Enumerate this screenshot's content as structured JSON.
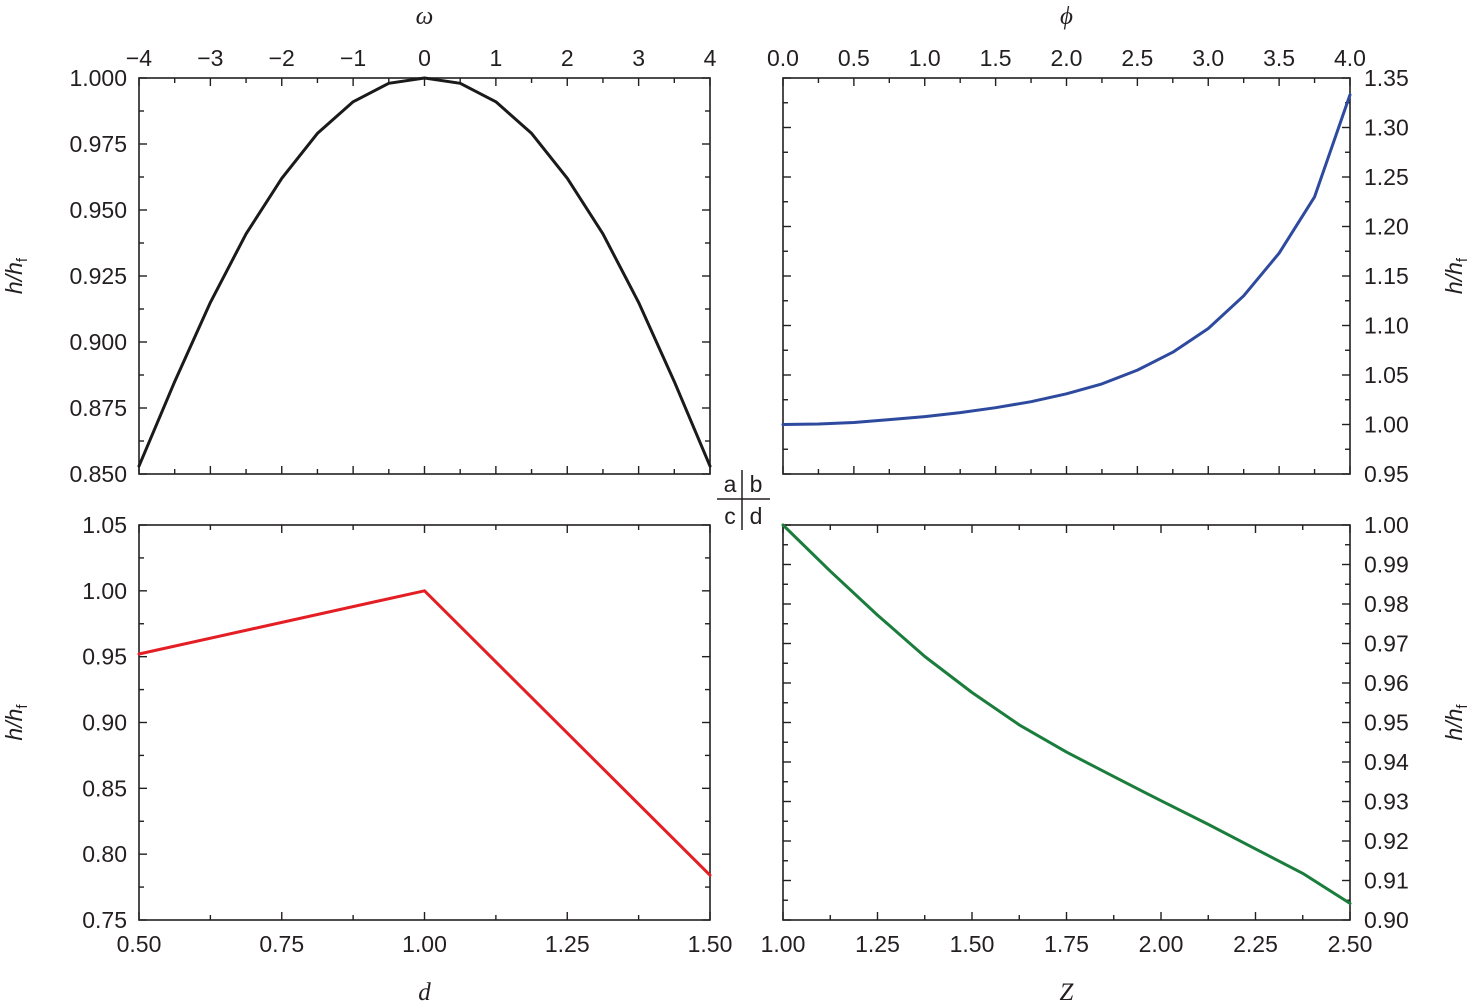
{
  "key": {
    "a": "a",
    "b": "b",
    "c": "c",
    "d": "d"
  },
  "chart_data": [
    {
      "panel": "a",
      "type": "line",
      "xlabel": "ω",
      "xaxis_position": "top",
      "ylabel": "h/h",
      "ylabel_sub": "f",
      "yaxis_position": "left",
      "xlim": [
        -4,
        4
      ],
      "ylim": [
        0.85,
        1.0
      ],
      "xticks": [
        -4,
        -3,
        -2,
        -1,
        0,
        1,
        2,
        3,
        4
      ],
      "xtick_labels": [
        "−4",
        "−3",
        "−2",
        "−1",
        "0",
        "1",
        "2",
        "3",
        "4"
      ],
      "yticks": [
        0.85,
        0.875,
        0.9,
        0.925,
        0.95,
        0.975,
        1.0
      ],
      "ytick_labels": [
        "0.850",
        "0.875",
        "0.900",
        "0.925",
        "0.950",
        "0.975",
        "1.000"
      ],
      "color": "#1a1a1a",
      "series": [
        {
          "x": [
            -4,
            -3.5,
            -3,
            -2.5,
            -2,
            -1.5,
            -1,
            -0.5,
            0,
            0.5,
            1,
            1.5,
            2,
            2.5,
            3,
            3.5,
            4
          ],
          "y": [
            0.853,
            0.885,
            0.915,
            0.941,
            0.962,
            0.979,
            0.991,
            0.998,
            1.0,
            0.998,
            0.991,
            0.979,
            0.962,
            0.941,
            0.915,
            0.885,
            0.853
          ]
        }
      ]
    },
    {
      "panel": "b",
      "type": "line",
      "xlabel": "ϕ",
      "xaxis_position": "top",
      "ylabel": "h/h",
      "ylabel_sub": "f",
      "yaxis_position": "right",
      "xlim": [
        0,
        4
      ],
      "ylim": [
        0.95,
        1.35
      ],
      "xticks": [
        0,
        0.5,
        1,
        1.5,
        2,
        2.5,
        3,
        3.5,
        4
      ],
      "xtick_labels": [
        "0.0",
        "0.5",
        "1.0",
        "1.5",
        "2.0",
        "2.5",
        "3.0",
        "3.5",
        "4.0"
      ],
      "yticks": [
        0.95,
        1.0,
        1.05,
        1.1,
        1.15,
        1.2,
        1.25,
        1.3,
        1.35
      ],
      "ytick_labels": [
        "0.95",
        "1.00",
        "1.05",
        "1.10",
        "1.15",
        "1.20",
        "1.25",
        "1.30",
        "1.35"
      ],
      "color": "#2e4a9e",
      "series": [
        {
          "x": [
            0,
            0.25,
            0.5,
            0.75,
            1,
            1.25,
            1.5,
            1.75,
            2,
            2.25,
            2.5,
            2.75,
            3,
            3.25,
            3.5,
            3.75,
            4
          ],
          "y": [
            1.0,
            1.0005,
            1.002,
            1.005,
            1.008,
            1.012,
            1.017,
            1.023,
            1.031,
            1.041,
            1.055,
            1.073,
            1.097,
            1.13,
            1.173,
            1.23,
            1.333
          ]
        }
      ]
    },
    {
      "panel": "c",
      "type": "line",
      "xlabel": "d",
      "xaxis_position": "bottom",
      "ylabel": "h/h",
      "ylabel_sub": "f",
      "yaxis_position": "left",
      "xlim": [
        0.5,
        1.5
      ],
      "ylim": [
        0.75,
        1.05
      ],
      "xticks": [
        0.5,
        0.75,
        1.0,
        1.25,
        1.5
      ],
      "xtick_labels": [
        "0.50",
        "0.75",
        "1.00",
        "1.25",
        "1.50"
      ],
      "yticks": [
        0.75,
        0.8,
        0.85,
        0.9,
        0.95,
        1.0,
        1.05
      ],
      "ytick_labels": [
        "0.75",
        "0.80",
        "0.85",
        "0.90",
        "0.95",
        "1.00",
        "1.05"
      ],
      "color": "#e31e24",
      "series": [
        {
          "x": [
            0.5,
            1.0,
            1.5
          ],
          "y": [
            0.952,
            1.0,
            0.784
          ]
        }
      ]
    },
    {
      "panel": "d",
      "type": "line",
      "xlabel": "Z",
      "xaxis_position": "bottom",
      "ylabel": "h/h",
      "ylabel_sub": "f",
      "yaxis_position": "right",
      "xlim": [
        1.0,
        2.5
      ],
      "ylim": [
        0.9,
        1.0
      ],
      "xticks": [
        1.0,
        1.25,
        1.5,
        1.75,
        2.0,
        2.25,
        2.5
      ],
      "xtick_labels": [
        "1.00",
        "1.25",
        "1.50",
        "1.75",
        "2.00",
        "2.25",
        "2.50"
      ],
      "yticks": [
        0.9,
        0.91,
        0.92,
        0.93,
        0.94,
        0.95,
        0.96,
        0.97,
        0.98,
        0.99,
        1.0
      ],
      "ytick_labels": [
        "0.90",
        "0.91",
        "0.92",
        "0.93",
        "0.94",
        "0.95",
        "0.96",
        "0.97",
        "0.98",
        "0.99",
        "1.00"
      ],
      "color": "#1a7d3c",
      "series": [
        {
          "x": [
            1.0,
            1.125,
            1.25,
            1.375,
            1.5,
            1.625,
            1.75,
            1.875,
            2.0,
            2.125,
            2.25,
            2.375,
            2.5
          ],
          "y": [
            1.0,
            0.9883,
            0.9772,
            0.9667,
            0.9576,
            0.9494,
            0.9425,
            0.9363,
            0.9302,
            0.9242,
            0.918,
            0.9118,
            0.9042
          ]
        }
      ]
    }
  ]
}
